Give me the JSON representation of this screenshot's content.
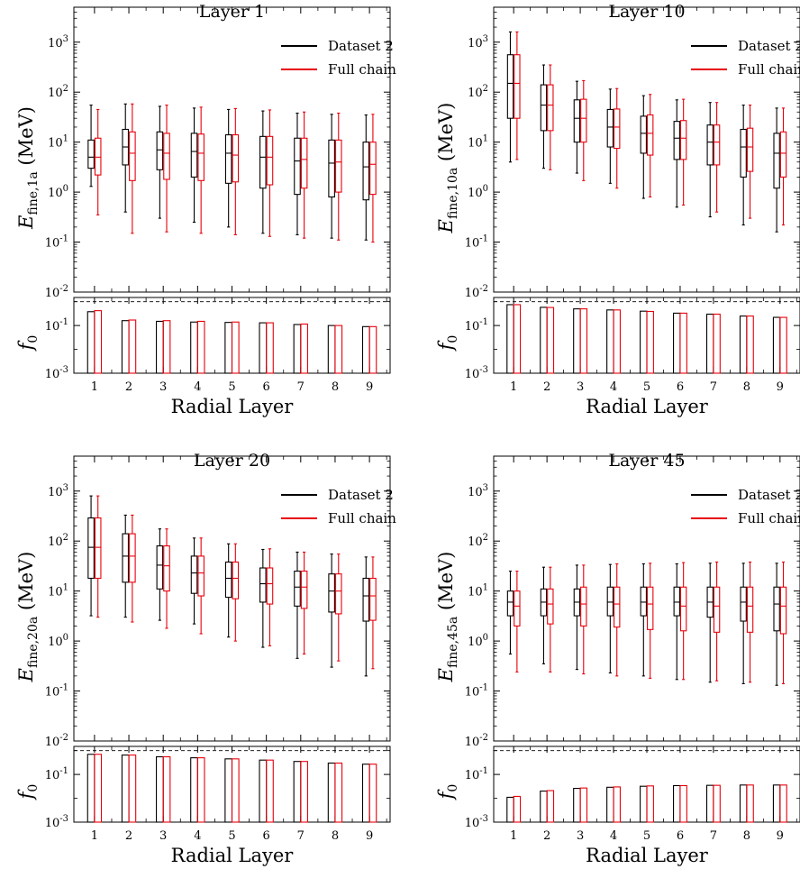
{
  "figure": {
    "x_axis_label": "Radial Layer"
  },
  "colors": {
    "dataset": "#000000",
    "fullchain": "#e8000b",
    "frame": "#000000"
  },
  "legend": [
    "Dataset 2",
    "Full chain"
  ],
  "chart_data": [
    {
      "type": "box",
      "title": "Layer 1",
      "ylabel_main": "E",
      "ylabel_sub": "fine,1a",
      "ylabel_unit": "(MeV)",
      "ratio_label": "f",
      "ratio_sub": "0",
      "yscale": "log",
      "ylim": [
        0.01,
        5000
      ],
      "ratio_ylim": [
        0.001,
        1.5
      ],
      "reference_line": 1,
      "legend_position": "upper-right",
      "categories": [
        1,
        2,
        3,
        4,
        5,
        6,
        7,
        8,
        9
      ],
      "series": [
        {
          "name": "Dataset 2",
          "boxes": [
            {
              "whislo": 1.3,
              "q1": 3.0,
              "med": 5.0,
              "q3": 11.0,
              "whishi": 55
            },
            {
              "whislo": 0.4,
              "q1": 3.5,
              "med": 8.0,
              "q3": 18.0,
              "whishi": 58
            },
            {
              "whislo": 0.3,
              "q1": 2.8,
              "med": 7.0,
              "q3": 16.0,
              "whishi": 52
            },
            {
              "whislo": 0.25,
              "q1": 2.0,
              "med": 6.5,
              "q3": 15.0,
              "whishi": 48
            },
            {
              "whislo": 0.2,
              "q1": 1.5,
              "med": 6.0,
              "q3": 14.0,
              "whishi": 45
            },
            {
              "whislo": 0.15,
              "q1": 1.2,
              "med": 5.0,
              "q3": 13.0,
              "whishi": 42
            },
            {
              "whislo": 0.14,
              "q1": 0.9,
              "med": 4.2,
              "q3": 12.0,
              "whishi": 38
            },
            {
              "whislo": 0.12,
              "q1": 0.8,
              "med": 3.8,
              "q3": 11.0,
              "whishi": 36
            },
            {
              "whislo": 0.11,
              "q1": 0.7,
              "med": 3.2,
              "q3": 10.0,
              "whishi": 35
            }
          ],
          "fraction": [
            0.38,
            0.16,
            0.15,
            0.14,
            0.135,
            0.13,
            0.11,
            0.1,
            0.09
          ]
        },
        {
          "name": "Full chain",
          "boxes": [
            {
              "whislo": 0.35,
              "q1": 2.2,
              "med": 5.0,
              "q3": 12.0,
              "whishi": 45
            },
            {
              "whislo": 0.15,
              "q1": 1.7,
              "med": 6.0,
              "q3": 16.0,
              "whishi": 58
            },
            {
              "whislo": 0.16,
              "q1": 1.8,
              "med": 6.0,
              "q3": 15.0,
              "whishi": 55
            },
            {
              "whislo": 0.15,
              "q1": 1.7,
              "med": 6.0,
              "q3": 14.5,
              "whishi": 50
            },
            {
              "whislo": 0.14,
              "q1": 1.6,
              "med": 5.5,
              "q3": 14.0,
              "whishi": 47
            },
            {
              "whislo": 0.13,
              "q1": 1.4,
              "med": 5.0,
              "q3": 13.0,
              "whishi": 44
            },
            {
              "whislo": 0.12,
              "q1": 1.2,
              "med": 4.5,
              "q3": 12.0,
              "whishi": 40
            },
            {
              "whislo": 0.11,
              "q1": 1.0,
              "med": 4.0,
              "q3": 11.0,
              "whishi": 38
            },
            {
              "whislo": 0.1,
              "q1": 0.9,
              "med": 3.6,
              "q3": 10.0,
              "whishi": 36
            }
          ],
          "fraction": [
            0.42,
            0.17,
            0.16,
            0.15,
            0.14,
            0.13,
            0.115,
            0.1,
            0.09
          ]
        }
      ]
    },
    {
      "type": "box",
      "title": "Layer 10",
      "ylabel_main": "E",
      "ylabel_sub": "fine,10a",
      "ylabel_unit": "(MeV)",
      "ratio_label": "f",
      "ratio_sub": "0",
      "yscale": "log",
      "ylim": [
        0.01,
        5000
      ],
      "ratio_ylim": [
        0.001,
        1.5
      ],
      "reference_line": 1,
      "legend_position": "upper-right",
      "categories": [
        1,
        2,
        3,
        4,
        5,
        6,
        7,
        8,
        9
      ],
      "series": [
        {
          "name": "Dataset 2",
          "boxes": [
            {
              "whislo": 4.0,
              "q1": 30,
              "med": 150,
              "q3": 560,
              "whishi": 1600
            },
            {
              "whislo": 3.0,
              "q1": 17,
              "med": 55,
              "q3": 140,
              "whishi": 350
            },
            {
              "whislo": 2.4,
              "q1": 10,
              "med": 30,
              "q3": 70,
              "whishi": 165
            },
            {
              "whislo": 1.5,
              "q1": 8,
              "med": 20,
              "q3": 45,
              "whishi": 115
            },
            {
              "whislo": 0.75,
              "q1": 6,
              "med": 15,
              "q3": 33,
              "whishi": 85
            },
            {
              "whislo": 0.5,
              "q1": 4.5,
              "med": 12,
              "q3": 26,
              "whishi": 70
            },
            {
              "whislo": 0.32,
              "q1": 3.5,
              "med": 10,
              "q3": 22,
              "whishi": 62
            },
            {
              "whislo": 0.22,
              "q1": 2.0,
              "med": 8,
              "q3": 18,
              "whishi": 55
            },
            {
              "whislo": 0.16,
              "q1": 1.2,
              "med": 6,
              "q3": 15,
              "whishi": 48
            }
          ],
          "fraction": [
            0.75,
            0.58,
            0.5,
            0.45,
            0.4,
            0.33,
            0.3,
            0.25,
            0.22
          ]
        },
        {
          "name": "Full chain",
          "boxes": [
            {
              "whislo": 4.5,
              "q1": 30,
              "med": 150,
              "q3": 560,
              "whishi": 1600
            },
            {
              "whislo": 2.8,
              "q1": 17,
              "med": 55,
              "q3": 140,
              "whishi": 350
            },
            {
              "whislo": 1.7,
              "q1": 10,
              "med": 30,
              "q3": 72,
              "whishi": 170
            },
            {
              "whislo": 1.2,
              "q1": 7.5,
              "med": 20,
              "q3": 46,
              "whishi": 118
            },
            {
              "whislo": 0.8,
              "q1": 5.5,
              "med": 15,
              "q3": 35,
              "whishi": 90
            },
            {
              "whislo": 0.55,
              "q1": 4.5,
              "med": 12,
              "q3": 27,
              "whishi": 72
            },
            {
              "whislo": 0.4,
              "q1": 3.5,
              "med": 10,
              "q3": 22,
              "whishi": 62
            },
            {
              "whislo": 0.3,
              "q1": 2.6,
              "med": 8,
              "q3": 19,
              "whishi": 55
            },
            {
              "whislo": 0.22,
              "q1": 2.0,
              "med": 6,
              "q3": 16,
              "whishi": 48
            }
          ],
          "fraction": [
            0.75,
            0.57,
            0.5,
            0.45,
            0.39,
            0.33,
            0.3,
            0.25,
            0.22
          ]
        }
      ]
    },
    {
      "type": "box",
      "title": "Layer 20",
      "ylabel_main": "E",
      "ylabel_sub": "fine,20a",
      "ylabel_unit": "(MeV)",
      "ratio_label": "f",
      "ratio_sub": "0",
      "yscale": "log",
      "ylim": [
        0.01,
        5000
      ],
      "ratio_ylim": [
        0.001,
        1.5
      ],
      "reference_line": 1,
      "legend_position": "upper-right",
      "categories": [
        1,
        2,
        3,
        4,
        5,
        6,
        7,
        8,
        9
      ],
      "series": [
        {
          "name": "Dataset 2",
          "boxes": [
            {
              "whislo": 3.2,
              "q1": 18,
              "med": 75,
              "q3": 290,
              "whishi": 800
            },
            {
              "whislo": 3.0,
              "q1": 15,
              "med": 50,
              "q3": 140,
              "whishi": 330
            },
            {
              "whislo": 2.6,
              "q1": 11,
              "med": 33,
              "q3": 80,
              "whishi": 175
            },
            {
              "whislo": 2.2,
              "q1": 9,
              "med": 23,
              "q3": 50,
              "whishi": 115
            },
            {
              "whislo": 1.2,
              "q1": 7.5,
              "med": 18,
              "q3": 38,
              "whishi": 88
            },
            {
              "whislo": 0.75,
              "q1": 6,
              "med": 14,
              "q3": 29,
              "whishi": 68
            },
            {
              "whislo": 0.45,
              "q1": 5,
              "med": 12,
              "q3": 25,
              "whishi": 60
            },
            {
              "whislo": 0.3,
              "q1": 3.8,
              "med": 10,
              "q3": 22,
              "whishi": 55
            },
            {
              "whislo": 0.2,
              "q1": 2.5,
              "med": 8,
              "q3": 18,
              "whishi": 48
            }
          ],
          "fraction": [
            0.7,
            0.65,
            0.55,
            0.5,
            0.45,
            0.4,
            0.35,
            0.3,
            0.27
          ]
        },
        {
          "name": "Full chain",
          "boxes": [
            {
              "whislo": 3.0,
              "q1": 18,
              "med": 75,
              "q3": 290,
              "whishi": 800
            },
            {
              "whislo": 2.4,
              "q1": 15,
              "med": 50,
              "q3": 140,
              "whishi": 330
            },
            {
              "whislo": 1.8,
              "q1": 10,
              "med": 32,
              "q3": 80,
              "whishi": 175
            },
            {
              "whislo": 1.4,
              "q1": 8,
              "med": 23,
              "q3": 50,
              "whishi": 115
            },
            {
              "whislo": 1.0,
              "q1": 7,
              "med": 18,
              "q3": 38,
              "whishi": 88
            },
            {
              "whislo": 0.8,
              "q1": 5.5,
              "med": 14,
              "q3": 29,
              "whishi": 70
            },
            {
              "whislo": 0.55,
              "q1": 4.5,
              "med": 12,
              "q3": 25,
              "whishi": 60
            },
            {
              "whislo": 0.4,
              "q1": 3.5,
              "med": 10,
              "q3": 22,
              "whishi": 55
            },
            {
              "whislo": 0.28,
              "q1": 2.6,
              "med": 8,
              "q3": 18,
              "whishi": 48
            }
          ],
          "fraction": [
            0.7,
            0.65,
            0.55,
            0.5,
            0.45,
            0.4,
            0.35,
            0.3,
            0.27
          ]
        }
      ]
    },
    {
      "type": "box",
      "title": "Layer 45",
      "ylabel_main": "E",
      "ylabel_sub": "fine,45a",
      "ylabel_unit": "(MeV)",
      "ratio_label": "f",
      "ratio_sub": "0",
      "yscale": "log",
      "ylim": [
        0.01,
        5000
      ],
      "ratio_ylim": [
        0.001,
        1.5
      ],
      "reference_line": 1,
      "legend_position": "upper-right",
      "categories": [
        1,
        2,
        3,
        4,
        5,
        6,
        7,
        8,
        9
      ],
      "series": [
        {
          "name": "Dataset 2",
          "boxes": [
            {
              "whislo": 0.55,
              "q1": 3.2,
              "med": 6.0,
              "q3": 10,
              "whishi": 25
            },
            {
              "whislo": 0.35,
              "q1": 3.2,
              "med": 6.0,
              "q3": 11,
              "whishi": 30
            },
            {
              "whislo": 0.27,
              "q1": 3.2,
              "med": 6.0,
              "q3": 11,
              "whishi": 33
            },
            {
              "whislo": 0.23,
              "q1": 3.2,
              "med": 6.0,
              "q3": 12,
              "whishi": 34
            },
            {
              "whislo": 0.2,
              "q1": 3.2,
              "med": 6.0,
              "q3": 12,
              "whishi": 35
            },
            {
              "whislo": 0.17,
              "q1": 3.2,
              "med": 6.0,
              "q3": 12,
              "whishi": 35
            },
            {
              "whislo": 0.15,
              "q1": 3.0,
              "med": 6.0,
              "q3": 12,
              "whishi": 36
            },
            {
              "whislo": 0.14,
              "q1": 2.5,
              "med": 6.0,
              "q3": 12,
              "whishi": 36
            },
            {
              "whislo": 0.13,
              "q1": 1.6,
              "med": 5.5,
              "q3": 12,
              "whishi": 36
            }
          ],
          "fraction": [
            0.011,
            0.02,
            0.026,
            0.029,
            0.032,
            0.034,
            0.035,
            0.036,
            0.036
          ]
        },
        {
          "name": "Full chain",
          "boxes": [
            {
              "whislo": 0.24,
              "q1": 2.0,
              "med": 5.0,
              "q3": 10,
              "whishi": 25
            },
            {
              "whislo": 0.24,
              "q1": 2.2,
              "med": 5.5,
              "q3": 11,
              "whishi": 30
            },
            {
              "whislo": 0.22,
              "q1": 2.0,
              "med": 5.5,
              "q3": 12,
              "whishi": 33
            },
            {
              "whislo": 0.2,
              "q1": 1.9,
              "med": 5.5,
              "q3": 12,
              "whishi": 35
            },
            {
              "whislo": 0.18,
              "q1": 1.7,
              "med": 5.5,
              "q3": 12,
              "whishi": 36
            },
            {
              "whislo": 0.17,
              "q1": 1.6,
              "med": 5.0,
              "q3": 12,
              "whishi": 37
            },
            {
              "whislo": 0.16,
              "q1": 1.5,
              "med": 5.0,
              "q3": 12,
              "whishi": 38
            },
            {
              "whislo": 0.15,
              "q1": 1.5,
              "med": 5.0,
              "q3": 12,
              "whishi": 38
            },
            {
              "whislo": 0.14,
              "q1": 1.4,
              "med": 5.0,
              "q3": 12,
              "whishi": 38
            }
          ],
          "fraction": [
            0.012,
            0.021,
            0.027,
            0.03,
            0.033,
            0.034,
            0.035,
            0.036,
            0.036
          ]
        }
      ]
    }
  ]
}
